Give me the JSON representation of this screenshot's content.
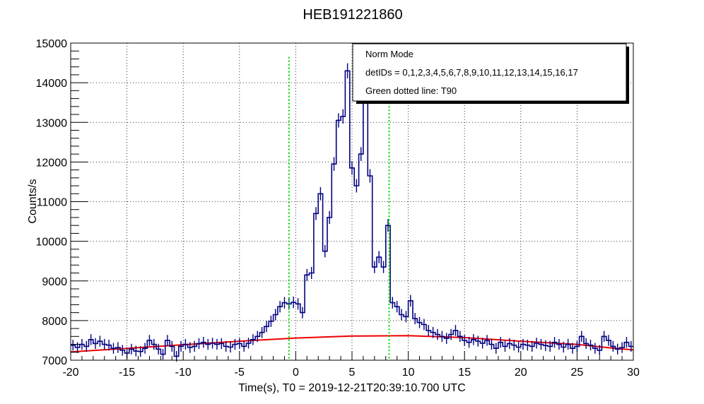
{
  "chart_data": {
    "type": "line",
    "title": "HEB191221860",
    "xlabel": "Time(s), T0 = 2019-12-21T20:39:10.700 UTC",
    "ylabel": "Counts/s",
    "xlim": [
      -20,
      30
    ],
    "ylim": [
      7000,
      15000
    ],
    "x_ticks": [
      -20,
      -15,
      -10,
      -5,
      0,
      5,
      10,
      15,
      20,
      25,
      30
    ],
    "x_tick_labels": [
      "-20",
      "-15",
      "-10",
      "-5",
      "0",
      "5",
      "10",
      "15",
      "20",
      "25",
      "30"
    ],
    "y_ticks": [
      7000,
      8000,
      9000,
      10000,
      11000,
      12000,
      13000,
      14000,
      15000
    ],
    "y_tick_labels": [
      "7000",
      "8000",
      "9000",
      "10000",
      "11000",
      "12000",
      "13000",
      "14000",
      "15000"
    ],
    "grid": true,
    "legend": {
      "position": "top-right",
      "lines": [
        "Norm Mode",
        "detIDs = 0,1,2,3,4,5,6,7,8,9,10,11,12,13,14,15,16,17",
        "Green dotted line: T90"
      ]
    },
    "bin_width": 0.4,
    "series": [
      {
        "style": "histogram-with-error-bars",
        "color": "#000080",
        "x_start": [
          -20.0,
          -19.6,
          -19.2,
          -18.8,
          -18.4,
          -18.0,
          -17.6,
          -17.2,
          -16.8,
          -16.4,
          -16.0,
          -15.6,
          -15.2,
          -14.8,
          -14.4,
          -14.0,
          -13.6,
          -13.2,
          -12.8,
          -12.4,
          -12.0,
          -11.6,
          -11.2,
          -10.8,
          -10.4,
          -10.0,
          -9.6,
          -9.2,
          -8.8,
          -8.4,
          -8.0,
          -7.6,
          -7.2,
          -6.8,
          -6.4,
          -6.0,
          -5.6,
          -5.2,
          -4.8,
          -4.4,
          -4.0,
          -3.6,
          -3.2,
          -2.8,
          -2.4,
          -2.0,
          -1.6,
          -1.2,
          -0.8,
          -0.4,
          0.0,
          0.4,
          0.8,
          1.2,
          1.6,
          2.0,
          2.4,
          2.8,
          3.2,
          3.6,
          4.0,
          4.4,
          4.8,
          5.2,
          5.6,
          6.0,
          6.4,
          6.8,
          7.2,
          7.6,
          8.0,
          8.4,
          8.8,
          9.2,
          9.6,
          10.0,
          10.4,
          10.8,
          11.2,
          11.6,
          12.0,
          12.4,
          12.8,
          13.2,
          13.6,
          14.0,
          14.4,
          14.8,
          15.2,
          15.6,
          16.0,
          16.4,
          16.8,
          17.2,
          17.6,
          18.0,
          18.4,
          18.8,
          19.2,
          19.6,
          20.0,
          20.4,
          20.8,
          21.2,
          21.6,
          22.0,
          22.4,
          22.8,
          23.2,
          23.6,
          24.0,
          24.4,
          24.8,
          25.2,
          25.6,
          26.0,
          26.4,
          26.8,
          27.2,
          27.6,
          28.0,
          28.4,
          28.8,
          29.2,
          29.6
        ],
        "values": [
          7380,
          7320,
          7400,
          7350,
          7520,
          7420,
          7480,
          7400,
          7380,
          7300,
          7320,
          7250,
          7180,
          7280,
          7230,
          7220,
          7300,
          7500,
          7400,
          7280,
          7150,
          7500,
          7350,
          7100,
          7350,
          7400,
          7320,
          7350,
          7420,
          7450,
          7400,
          7430,
          7400,
          7420,
          7350,
          7330,
          7400,
          7420,
          7350,
          7430,
          7520,
          7600,
          7700,
          7850,
          7980,
          8150,
          8350,
          8450,
          8420,
          8460,
          8420,
          8200,
          9150,
          9200,
          10700,
          11200,
          9750,
          10600,
          11950,
          13050,
          13150,
          14300,
          11850,
          11400,
          12200,
          13900,
          11650,
          9350,
          9600,
          9350,
          10400,
          8450,
          8350,
          8150,
          8100,
          8500,
          8050,
          7950,
          7900,
          7750,
          7700,
          7650,
          7600,
          7550,
          7650,
          7750,
          7600,
          7500,
          7450,
          7520,
          7480,
          7430,
          7500,
          7400,
          7300,
          7450,
          7350,
          7420,
          7380,
          7330,
          7400,
          7380,
          7350,
          7430,
          7400,
          7370,
          7350,
          7450,
          7400,
          7330,
          7400,
          7300,
          7350,
          7600,
          7420,
          7380,
          7300,
          7250,
          7600,
          7500,
          7350,
          7280,
          7320,
          7450,
          7350
        ]
      },
      {
        "style": "smooth-line",
        "color": "#ee0000",
        "x": [
          -20,
          -15,
          -10,
          -5,
          0,
          5,
          10,
          15,
          20,
          25,
          28,
          30
        ],
        "values": [
          7210,
          7300,
          7390,
          7480,
          7560,
          7610,
          7620,
          7570,
          7480,
          7400,
          7310,
          7260
        ]
      }
    ],
    "vlines": [
      {
        "x": -0.6,
        "y_top": 14650,
        "style": "dotted",
        "color": "#00dd00"
      },
      {
        "x": 8.3,
        "y_top": 13500,
        "style": "dotted",
        "color": "#00dd00"
      }
    ]
  }
}
